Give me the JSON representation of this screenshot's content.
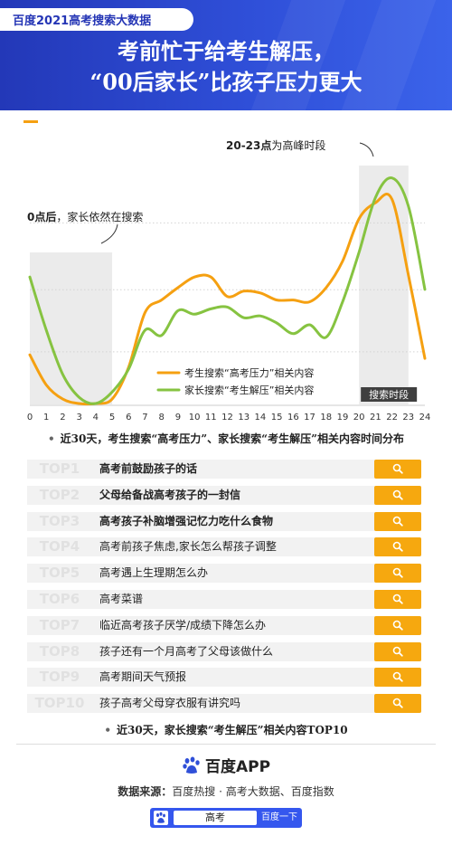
{
  "header": {
    "brand": "百度2021高考搜索大数据",
    "headline_line1": "考前忙于给考生解压，",
    "headline_line2": "“00后家长”比孩子压力更大"
  },
  "chart_data": {
    "type": "line",
    "x": [
      0,
      1,
      2,
      3,
      4,
      5,
      6,
      7,
      8,
      9,
      10,
      11,
      12,
      13,
      14,
      15,
      16,
      17,
      18,
      19,
      20,
      21,
      22,
      23,
      24
    ],
    "x_tick_labels": [
      "0",
      "1",
      "2",
      "3",
      "4",
      "5",
      "6",
      "7",
      "8",
      "9",
      "10",
      "11",
      "12",
      "13",
      "14",
      "15",
      "16",
      "17",
      "18",
      "19",
      "20",
      "21",
      "22",
      "23",
      "24"
    ],
    "series": [
      {
        "name": "考生搜索“高考压力”相关内容",
        "color": "#f5a011",
        "values": [
          28,
          11,
          3,
          0.5,
          0.5,
          3,
          21,
          52,
          59,
          66,
          72,
          72,
          61,
          64,
          63,
          59,
          59,
          58,
          66,
          81,
          105,
          114,
          116,
          73,
          26
        ]
      },
      {
        "name": "家长搜索“考生解压”相关内容",
        "color": "#86c341",
        "values": [
          72,
          42,
          17,
          4,
          0.5,
          7,
          20,
          42,
          39,
          53,
          51,
          54,
          55,
          49,
          50,
          46,
          40,
          45,
          38,
          58,
          86,
          117,
          128,
          112,
          65
        ]
      }
    ],
    "ylim": [
      0,
      135
    ],
    "grid": true,
    "shaded_ranges": [
      [
        0,
        5
      ],
      [
        20,
        23
      ]
    ],
    "annotations": [
      {
        "text_bold": "0点后",
        "text": "，家长依然在搜索"
      },
      {
        "text_bold": "20-23点",
        "text": "为高峰时段"
      }
    ],
    "shaded_label": "搜索时段",
    "legend_position": "bottom-right"
  },
  "chart_caption": "近30天，考生搜索“高考压力”、家长搜索“考生解压”相关内容时间分布",
  "top_list": [
    {
      "rank": "TOP1",
      "query": "高考前鼓励孩子的话",
      "bold": true
    },
    {
      "rank": "TOP2",
      "query": "父母给备战高考孩子的一封信",
      "bold": true
    },
    {
      "rank": "TOP3",
      "query": "高考孩子补脑增强记忆力吃什么食物",
      "bold": true
    },
    {
      "rank": "TOP4",
      "query": "高考前孩子焦虑,家长怎么帮孩子调整",
      "bold": false
    },
    {
      "rank": "TOP5",
      "query": "高考遇上生理期怎么办",
      "bold": false
    },
    {
      "rank": "TOP6",
      "query": "高考菜谱",
      "bold": false
    },
    {
      "rank": "TOP7",
      "query": "临近高考孩子厌学/成绩下降怎么办",
      "bold": false
    },
    {
      "rank": "TOP8",
      "query": "孩子还有一个月高考了父母该做什么",
      "bold": false
    },
    {
      "rank": "TOP9",
      "query": "高考期间天气预报",
      "bold": false
    },
    {
      "rank": "TOP10",
      "query": "孩子高考父母穿衣服有讲究吗",
      "bold": false
    }
  ],
  "list_caption": "近30天，家长搜索“考生解压”相关内容TOP10",
  "footer": {
    "app_name": "百度APP",
    "source_label": "数据来源：",
    "source_text": "百度热搜 · 高考大数据、百度指数",
    "search_query": "高考",
    "search_button": "百度一下"
  },
  "colors": {
    "header_blue": "#2f4fd8",
    "accent_orange": "#f5a011",
    "accent_green": "#86c341",
    "search_btn": "#f6a80f"
  }
}
